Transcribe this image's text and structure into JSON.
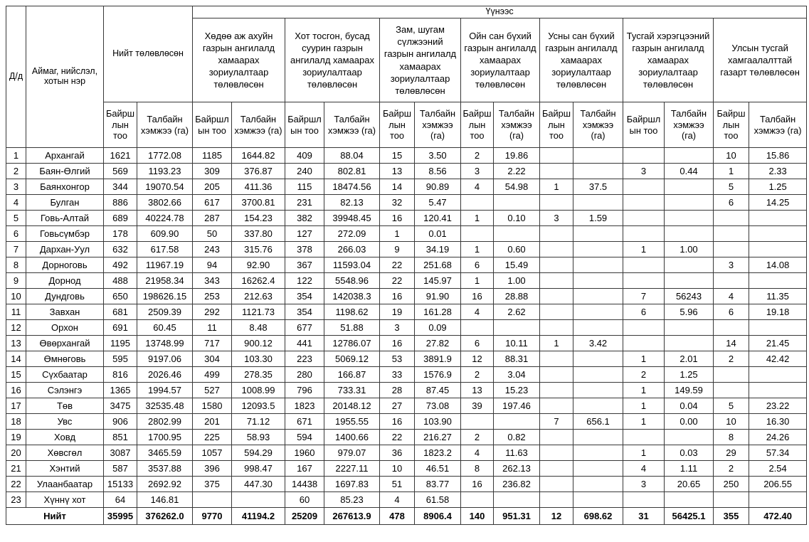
{
  "table": {
    "header": {
      "dd": "Д/д",
      "aimag": "Аймаг, нийслэл, хотын нэр",
      "total_planned": "Нийт төлөвлөсөн",
      "of_which": "Үүнээс"
    },
    "groups": [
      "Хөдөө аж ахуйн газрын ангилалд хамаарах зориулалтаар төлөвлөсөн",
      "Хот тосгон, бусад суурин газрын ангилалд хамаарах зориулалтаар төлөвлөсөн",
      "Зам, шугам сүлжээний газрын ангилалд хамаарах зориулалтаар төлөвлөсөн",
      "Ойн сан бүхий газрын ангилалд хамаарах зориулалтаар төлөвлөсөн",
      "Усны сан бүхий газрын ангилалд хамаарах зориулалтаар төлөвлөсөн",
      "Тусгай хэрэгцээний газрын ангилалд хамаарах зориулалтаар төлөвлөсөн",
      "Улсын тусгай хамгаалалттай газарт төлөвлөсөн"
    ],
    "sub_headers": {
      "count": "Байршлын тоо",
      "area": "Талбайн хэмжээ (га)"
    },
    "rows": [
      {
        "no": "1",
        "name": "Архангай",
        "values": [
          "1621",
          "1772.08",
          "1185",
          "1644.82",
          "409",
          "88.04",
          "15",
          "3.50",
          "2",
          "19.86",
          "",
          "",
          "",
          "",
          "10",
          "15.86"
        ]
      },
      {
        "no": "2",
        "name": "Баян-Өлгий",
        "values": [
          "569",
          "1193.23",
          "309",
          "376.87",
          "240",
          "802.81",
          "13",
          "8.56",
          "3",
          "2.22",
          "",
          "",
          "3",
          "0.44",
          "1",
          "2.33"
        ]
      },
      {
        "no": "3",
        "name": "Баянхонгор",
        "values": [
          "344",
          "19070.54",
          "205",
          "411.36",
          "115",
          "18474.56",
          "14",
          "90.89",
          "4",
          "54.98",
          "1",
          "37.5",
          "",
          "",
          "5",
          "1.25"
        ]
      },
      {
        "no": "4",
        "name": "Булган",
        "values": [
          "886",
          "3802.66",
          "617",
          "3700.81",
          "231",
          "82.13",
          "32",
          "5.47",
          "",
          "",
          "",
          "",
          "",
          "",
          "6",
          "14.25"
        ]
      },
      {
        "no": "5",
        "name": "Говь-Алтай",
        "values": [
          "689",
          "40224.78",
          "287",
          "154.23",
          "382",
          "39948.45",
          "16",
          "120.41",
          "1",
          "0.10",
          "3",
          "1.59",
          "",
          "",
          "",
          ""
        ]
      },
      {
        "no": "6",
        "name": "Говьсүмбэр",
        "values": [
          "178",
          "609.90",
          "50",
          "337.80",
          "127",
          "272.09",
          "1",
          "0.01",
          "",
          "",
          "",
          "",
          "",
          "",
          "",
          ""
        ]
      },
      {
        "no": "7",
        "name": "Дархан-Уул",
        "values": [
          "632",
          "617.58",
          "243",
          "315.76",
          "378",
          "266.03",
          "9",
          "34.19",
          "1",
          "0.60",
          "",
          "",
          "1",
          "1.00",
          "",
          ""
        ]
      },
      {
        "no": "8",
        "name": "Дорноговь",
        "values": [
          "492",
          "11967.19",
          "94",
          "92.90",
          "367",
          "11593.04",
          "22",
          "251.68",
          "6",
          "15.49",
          "",
          "",
          "",
          "",
          "3",
          "14.08"
        ]
      },
      {
        "no": "9",
        "name": "Дорнод",
        "values": [
          "488",
          "21958.34",
          "343",
          "16262.4",
          "122",
          "5548.96",
          "22",
          "145.97",
          "1",
          "1.00",
          "",
          "",
          "",
          "",
          "",
          ""
        ]
      },
      {
        "no": "10",
        "name": "Дундговь",
        "values": [
          "650",
          "198626.15",
          "253",
          "212.63",
          "354",
          "142038.3",
          "16",
          "91.90",
          "16",
          "28.88",
          "",
          "",
          "7",
          "56243",
          "4",
          "11.35"
        ]
      },
      {
        "no": "11",
        "name": "Завхан",
        "values": [
          "681",
          "2509.39",
          "292",
          "1121.73",
          "354",
          "1198.62",
          "19",
          "161.28",
          "4",
          "2.62",
          "",
          "",
          "6",
          "5.96",
          "6",
          "19.18"
        ]
      },
      {
        "no": "12",
        "name": "Орхон",
        "values": [
          "691",
          "60.45",
          "11",
          "8.48",
          "677",
          "51.88",
          "3",
          "0.09",
          "",
          "",
          "",
          "",
          "",
          "",
          "",
          ""
        ]
      },
      {
        "no": "13",
        "name": "Өвөрхангай",
        "values": [
          "1195",
          "13748.99",
          "717",
          "900.12",
          "441",
          "12786.07",
          "16",
          "27.82",
          "6",
          "10.11",
          "1",
          "3.42",
          "",
          "",
          "14",
          "21.45"
        ]
      },
      {
        "no": "14",
        "name": "Өмнөговь",
        "values": [
          "595",
          "9197.06",
          "304",
          "103.30",
          "223",
          "5069.12",
          "53",
          "3891.9",
          "12",
          "88.31",
          "",
          "",
          "1",
          "2.01",
          "2",
          "42.42"
        ]
      },
      {
        "no": "15",
        "name": "Сүхбаатар",
        "values": [
          "816",
          "2026.46",
          "499",
          "278.35",
          "280",
          "166.87",
          "33",
          "1576.9",
          "2",
          "3.04",
          "",
          "",
          "2",
          "1.25",
          "",
          ""
        ]
      },
      {
        "no": "16",
        "name": "Сэлэнгэ",
        "values": [
          "1365",
          "1994.57",
          "527",
          "1008.99",
          "796",
          "733.31",
          "28",
          "87.45",
          "13",
          "15.23",
          "",
          "",
          "1",
          "149.59",
          "",
          ""
        ]
      },
      {
        "no": "17",
        "name": "Төв",
        "values": [
          "3475",
          "32535.48",
          "1580",
          "12093.5",
          "1823",
          "20148.12",
          "27",
          "73.08",
          "39",
          "197.46",
          "",
          "",
          "1",
          "0.04",
          "5",
          "23.22"
        ]
      },
      {
        "no": "18",
        "name": "Увс",
        "values": [
          "906",
          "2802.99",
          "201",
          "71.12",
          "671",
          "1955.55",
          "16",
          "103.90",
          "",
          "",
          "7",
          "656.1",
          "1",
          "0.00",
          "10",
          "16.30"
        ]
      },
      {
        "no": "19",
        "name": "Ховд",
        "values": [
          "851",
          "1700.95",
          "225",
          "58.93",
          "594",
          "1400.66",
          "22",
          "216.27",
          "2",
          "0.82",
          "",
          "",
          "",
          "",
          "8",
          "24.26"
        ]
      },
      {
        "no": "20",
        "name": "Хөвсгөл",
        "values": [
          "3087",
          "3465.59",
          "1057",
          "594.29",
          "1960",
          "979.07",
          "36",
          "1823.2",
          "4",
          "11.63",
          "",
          "",
          "1",
          "0.03",
          "29",
          "57.34"
        ]
      },
      {
        "no": "21",
        "name": "Хэнтий",
        "values": [
          "587",
          "3537.88",
          "396",
          "998.47",
          "167",
          "2227.11",
          "10",
          "46.51",
          "8",
          "262.13",
          "",
          "",
          "4",
          "1.11",
          "2",
          "2.54"
        ]
      },
      {
        "no": "22",
        "name": "Улаанбаатар",
        "values": [
          "15133",
          "2692.92",
          "375",
          "447.30",
          "14438",
          "1697.83",
          "51",
          "83.77",
          "16",
          "236.82",
          "",
          "",
          "3",
          "20.65",
          "250",
          "206.55"
        ]
      },
      {
        "no": "23",
        "name": "Хүннү хот",
        "values": [
          "64",
          "146.81",
          "",
          "",
          "60",
          "85.23",
          "4",
          "61.58",
          "",
          "",
          "",
          "",
          "",
          "",
          "",
          ""
        ]
      }
    ],
    "total": {
      "label": "Нийт",
      "values": [
        "35995",
        "376262.0",
        "9770",
        "41194.2",
        "25209",
        "267613.9",
        "478",
        "8906.4",
        "140",
        "951.31",
        "12",
        "698.62",
        "31",
        "56425.1",
        "355",
        "472.40"
      ]
    }
  }
}
